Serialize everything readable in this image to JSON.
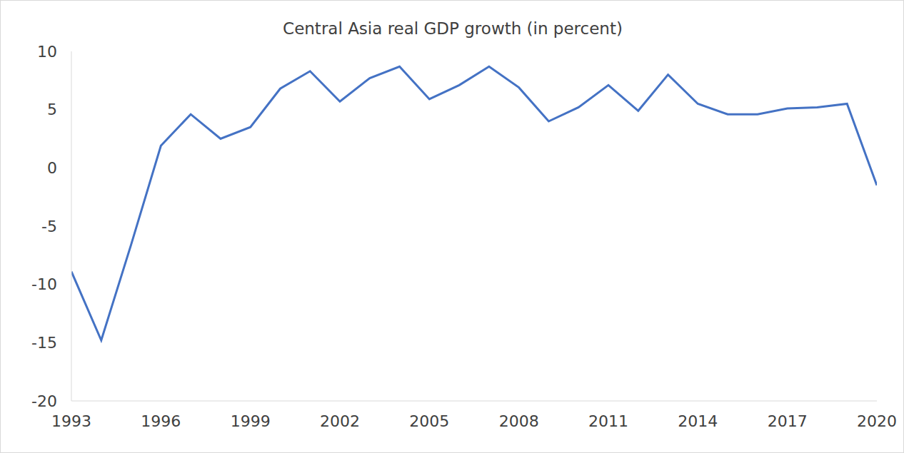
{
  "chart_data": {
    "type": "line",
    "title": "Central Asia real GDP growth (in percent)",
    "x": [
      1993,
      1994,
      1995,
      1996,
      1997,
      1998,
      1999,
      2000,
      2001,
      2002,
      2003,
      2004,
      2005,
      2006,
      2007,
      2008,
      2009,
      2010,
      2011,
      2012,
      2013,
      2014,
      2015,
      2016,
      2017,
      2018,
      2019,
      2020
    ],
    "values": [
      -8.9,
      -14.8,
      -6.6,
      1.9,
      4.6,
      2.5,
      3.5,
      6.8,
      8.3,
      5.7,
      7.7,
      8.7,
      5.9,
      7.1,
      8.7,
      6.9,
      4.0,
      5.2,
      7.1,
      4.9,
      8.0,
      5.5,
      4.6,
      4.6,
      5.1,
      5.2,
      5.5,
      -1.5
    ],
    "color": "#4472c4",
    "xlim": [
      1993,
      2020
    ],
    "ylim": [
      -20,
      10
    ],
    "xticks": [
      1993,
      1996,
      1999,
      2002,
      2005,
      2008,
      2011,
      2014,
      2017,
      2020
    ],
    "yticks": [
      -20,
      -15,
      -10,
      -5,
      0,
      5,
      10
    ],
    "grid": false
  }
}
